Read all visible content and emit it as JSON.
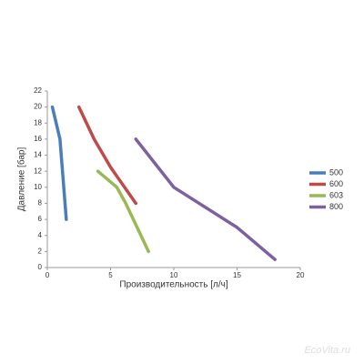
{
  "chart_data": {
    "type": "line",
    "xlabel": "Производительность [л/ч]",
    "ylabel": "Давление [бар]",
    "xlim": [
      0,
      20
    ],
    "xticks": [
      0,
      5,
      10,
      15,
      20
    ],
    "ylim": [
      0,
      22
    ],
    "yticks": [
      0,
      2,
      4,
      6,
      8,
      10,
      12,
      14,
      16,
      18,
      20,
      22
    ],
    "grid": false,
    "legend": "right",
    "series": [
      {
        "name": "500",
        "color": "#4a7ebb",
        "x": [
          0.4,
          1,
          1.5
        ],
        "values": [
          20,
          16,
          6
        ]
      },
      {
        "name": "600",
        "color": "#be4b48",
        "x": [
          2.5,
          3.7,
          5,
          7
        ],
        "values": [
          20,
          16,
          12.5,
          8
        ]
      },
      {
        "name": "603",
        "color": "#98b954",
        "x": [
          4,
          5.5,
          6.2,
          8
        ],
        "values": [
          12,
          10,
          8,
          2
        ]
      },
      {
        "name": "800",
        "color": "#7d60a0",
        "x": [
          7,
          8.5,
          10,
          12,
          15,
          18
        ],
        "values": [
          16,
          13,
          10,
          8,
          5,
          1
        ]
      }
    ],
    "watermark": "EcoVita.ru"
  }
}
